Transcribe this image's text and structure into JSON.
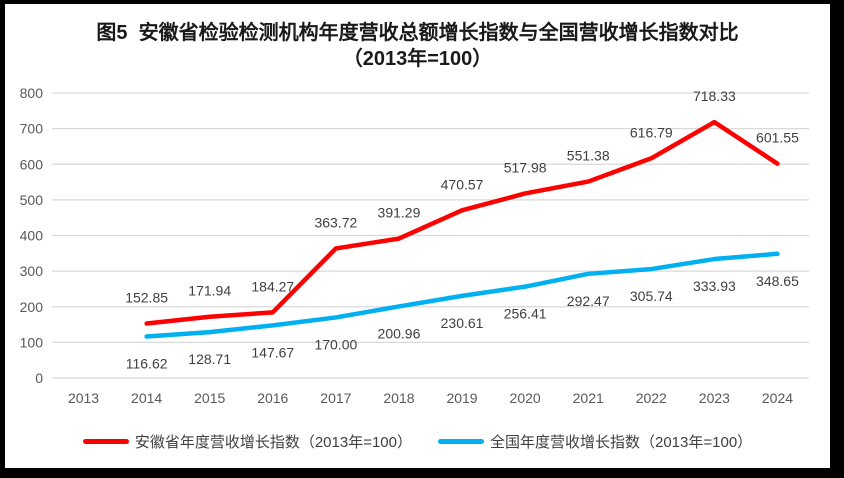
{
  "colors": {
    "anhui_red": "#FF0000",
    "national_blue": "#00B0F0",
    "gridline": "#D9D9D9",
    "tick_text": "#595959",
    "label_text": "#404040",
    "frame_border": "#000000"
  },
  "chart_data": {
    "type": "line",
    "title": "图5  安徽省检验检测机构年度营收总额增长指数与全国营收增长指数对比",
    "subtitle": "（2013年=100）",
    "categories": [
      "2013",
      "2014",
      "2015",
      "2016",
      "2017",
      "2018",
      "2019",
      "2020",
      "2021",
      "2022",
      "2023",
      "2024"
    ],
    "series": [
      {
        "name": "安徽省年度营收增长指数（2013年=100）",
        "key": "anhui",
        "color": "#FF0000",
        "label_position": "above",
        "values": [
          null,
          152.85,
          171.94,
          184.27,
          363.72,
          391.29,
          470.57,
          517.98,
          551.38,
          616.79,
          718.33,
          601.55
        ]
      },
      {
        "name": "全国年度营收增长指数（2013年=100）",
        "key": "national",
        "color": "#00B0F0",
        "label_position": "below",
        "values": [
          null,
          116.62,
          128.71,
          147.67,
          170.0,
          200.96,
          230.61,
          256.41,
          292.47,
          305.74,
          333.93,
          348.65
        ]
      }
    ],
    "ylim": [
      0,
      800
    ],
    "ytick_step": 100,
    "grid": true,
    "legend_position": "bottom",
    "xlabel": "",
    "ylabel": ""
  }
}
